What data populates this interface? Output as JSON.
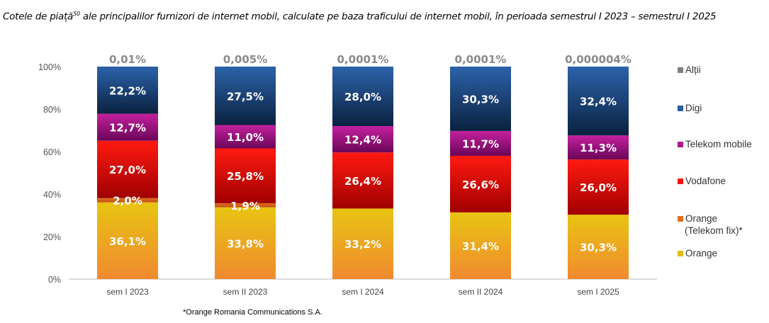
{
  "title": "Cotele de piață",
  "title_sup": "50",
  "title_rest": " ale principalilor furnizori de internet mobil, calculate pe baza traficului de internet mobil, în perioada semestrul I 2023 – semestrul I 2025",
  "footnote": "*Orange Romania Communications S.A.",
  "chart_data": {
    "type": "bar",
    "stacked": true,
    "categories": [
      "sem I 2023",
      "sem II 2023",
      "sem I 2024",
      "sem II 2024",
      "sem I 2025"
    ],
    "ylim": [
      0,
      100
    ],
    "yticks": [
      "0%",
      "20%",
      "40%",
      "60%",
      "80%",
      "100%"
    ],
    "series": [
      {
        "name": "Orange",
        "color": "#e8b818",
        "values": [
          36.1,
          33.8,
          33.2,
          31.4,
          30.3
        ],
        "labels": [
          "36,1%",
          "33,8%",
          "33,2%",
          "31,4%",
          "30,3%"
        ]
      },
      {
        "name": "Orange (Telekom fix)*",
        "color": "#e07020",
        "values": [
          2.0,
          1.9,
          0,
          0,
          0
        ],
        "labels": [
          "2,0%",
          "1,9%",
          "",
          "",
          ""
        ]
      },
      {
        "name": "Vodafone",
        "color": "#ff1010",
        "values": [
          27.0,
          25.8,
          26.4,
          26.6,
          26.0
        ],
        "labels": [
          "27,0%",
          "25,8%",
          "26,4%",
          "26,6%",
          "26,0%"
        ]
      },
      {
        "name": "Telekom mobile",
        "color": "#b0188c",
        "values": [
          12.7,
          11.0,
          12.4,
          11.7,
          11.3
        ],
        "labels": [
          "12,7%",
          "11,0%",
          "12,4%",
          "11,7%",
          "11,3%"
        ]
      },
      {
        "name": "Digi",
        "color": "#2a5ea6",
        "values": [
          22.2,
          27.5,
          28.0,
          30.3,
          32.4
        ],
        "labels": [
          "22,2%",
          "27,5%",
          "28,0%",
          "30,3%",
          "32,4%"
        ]
      },
      {
        "name": "Alții",
        "color": "#808080",
        "values": [
          0.01,
          0.005,
          0.0001,
          0.0001,
          4e-06
        ],
        "labels": [
          "0,01%",
          "0,005%",
          "0,0001%",
          "0,0001%",
          "0,000004%"
        ]
      }
    ],
    "legend_position": "right"
  }
}
